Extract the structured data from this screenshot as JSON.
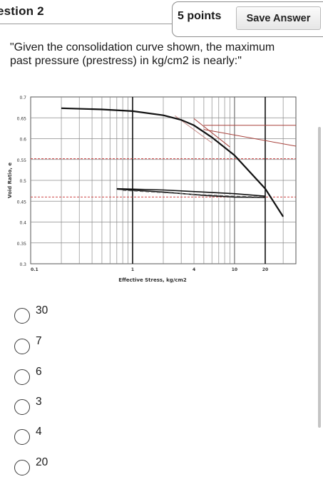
{
  "header": {
    "title": "estion 2",
    "points": "5 points",
    "save_label": "Save Answer"
  },
  "question": {
    "text": "\"Given the consolidation curve shown, the maximum past pressure (prestress) in kg/cm2 is nearly:\""
  },
  "chart_data": {
    "type": "line",
    "xlabel": "Effective Stress, kg/cm2",
    "ylabel": "Void Ratio, e",
    "x_scale": "log",
    "xlim": [
      0.1,
      40
    ],
    "ylim": [
      0.3,
      0.7
    ],
    "x_tick_labels": [
      "0.1",
      "1",
      "4",
      "10",
      "20"
    ],
    "y_tick_labels": [
      "0.7",
      "0.65",
      "0.6",
      "0.55",
      "0.5",
      "0.45",
      "0.4",
      "0.35",
      "0.3"
    ],
    "grid": true,
    "series": [
      {
        "kind": "loading",
        "color": "#111111",
        "x": [
          0.2,
          0.5,
          1.0,
          2.0,
          3.0,
          4.0,
          6.0,
          10.0,
          20.0,
          30.0
        ],
        "y": [
          0.673,
          0.67,
          0.666,
          0.656,
          0.645,
          0.632,
          0.603,
          0.56,
          0.48,
          0.413
        ]
      },
      {
        "kind": "unload",
        "color": "#111111",
        "x": [
          0.7,
          2.0,
          5.0,
          10.0,
          20.0
        ],
        "y": [
          0.48,
          0.477,
          0.472,
          0.468,
          0.462
        ]
      },
      {
        "kind": "reload",
        "color": "#111111",
        "x": [
          0.7,
          2.0,
          5.0,
          10.0,
          20.0
        ],
        "y": [
          0.479,
          0.472,
          0.464,
          0.46,
          0.459
        ]
      },
      {
        "kind": "reload-dashed",
        "color": "#666666",
        "x": [
          0.8,
          3.0,
          10.0,
          20.0
        ],
        "y": [
          0.476,
          0.468,
          0.462,
          0.46
        ]
      }
    ],
    "construction_lines": [
      {
        "color": "#a8423c",
        "x": [
          4.0,
          9.0
        ],
        "y": [
          0.648,
          0.58
        ]
      },
      {
        "color": "#c78a86",
        "x": [
          2.6,
          6.0
        ],
        "y": [
          0.655,
          0.59
        ]
      },
      {
        "color": "#a8423c",
        "x": [
          5.0,
          40.0
        ],
        "y": [
          0.632,
          0.632
        ]
      },
      {
        "color": "#a8423c",
        "x": [
          5.0,
          40.0
        ],
        "y": [
          0.622,
          0.582
        ]
      },
      {
        "color": "#cc4444",
        "x": [
          0.1,
          40.0
        ],
        "y": [
          0.552,
          0.552
        ],
        "dashed": true
      },
      {
        "color": "#cc4444",
        "x": [
          0.1,
          40.0
        ],
        "y": [
          0.46,
          0.46
        ],
        "dashed": true
      }
    ],
    "black_vertical_lines": [
      1,
      20
    ]
  },
  "options": [
    {
      "label": "30"
    },
    {
      "label": "7"
    },
    {
      "label": "6"
    },
    {
      "label": "3"
    },
    {
      "label": "4"
    },
    {
      "label": "20"
    }
  ]
}
